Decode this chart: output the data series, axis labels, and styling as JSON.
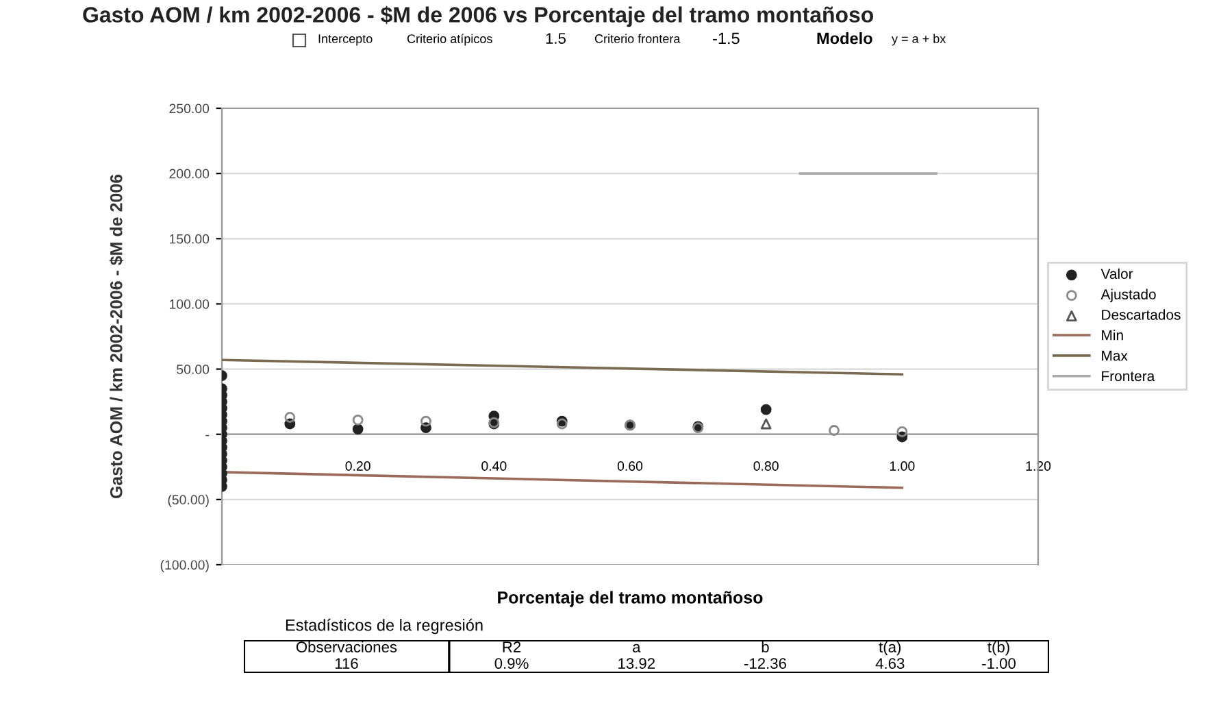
{
  "chart_data": {
    "type": "scatter",
    "title": "Gasto AOM / km 2002-2006 - $M de 2006 vs Porcentaje del tramo montañoso",
    "xlabel": "Porcentaje del tramo montañoso",
    "ylabel": "Gasto AOM / km 2002-2006 - $M de 2006",
    "xlim": [
      0,
      1.2
    ],
    "xticks": [
      {
        "value": 0.2,
        "label": "0.20"
      },
      {
        "value": 0.4,
        "label": "0.40"
      },
      {
        "value": 0.6,
        "label": "0.60"
      },
      {
        "value": 0.8,
        "label": "0.80"
      },
      {
        "value": 1.0,
        "label": "1.00"
      },
      {
        "value": 1.2,
        "label": "1.20"
      }
    ],
    "ylim": [
      -100,
      250
    ],
    "yticks": [
      {
        "value": -100,
        "label": "(100.00)"
      },
      {
        "value": -50,
        "label": "(50.00)"
      },
      {
        "value": 0,
        "label": "-"
      },
      {
        "value": 50,
        "label": "50.00"
      },
      {
        "value": 100,
        "label": "100.00"
      },
      {
        "value": 150,
        "label": "150.00"
      },
      {
        "value": 200,
        "label": "200.00"
      },
      {
        "value": 250,
        "label": "250.00"
      }
    ],
    "grid": "y",
    "legend": "right",
    "series": [
      {
        "name": "Valor",
        "marker": "circle",
        "color": "#222222",
        "x": [
          0,
          0,
          0,
          0,
          0,
          0,
          0,
          0,
          0,
          0,
          0,
          0,
          0,
          0,
          0,
          0,
          0,
          0.1,
          0.2,
          0.3,
          0.4,
          0.4,
          0.5,
          0.6,
          0.7,
          0.8,
          1.0
        ],
        "values": [
          -40,
          -35,
          -30,
          -25,
          -20,
          -15,
          -10,
          -5,
          0,
          5,
          10,
          15,
          20,
          25,
          30,
          35,
          45,
          8,
          4,
          5,
          8,
          14,
          10,
          7,
          6,
          19,
          -2
        ]
      },
      {
        "name": "Ajustado",
        "marker": "circle",
        "color": "#888888",
        "x": [
          0.1,
          0.2,
          0.3,
          0.4,
          0.5,
          0.6,
          0.7,
          0.9,
          1.0
        ],
        "values": [
          13,
          11,
          10,
          9,
          8,
          7,
          5,
          3,
          2
        ]
      },
      {
        "name": "Descartados",
        "marker": "triangle",
        "color": "#555555",
        "x": [
          0.8
        ],
        "values": [
          8
        ]
      },
      {
        "name": "Min",
        "type": "line",
        "line_style": "solid",
        "color": "#9a6a5a",
        "x": [
          0,
          1.0
        ],
        "values": [
          -29,
          -41
        ]
      },
      {
        "name": "Max",
        "type": "line",
        "line_style": "solid",
        "color": "#7a6a50",
        "x": [
          0,
          1.0
        ],
        "values": [
          57,
          46
        ]
      },
      {
        "name": "Frontera",
        "type": "line",
        "line_style": "solid",
        "color": "#aaaaaa",
        "x": [
          0.85,
          1.05
        ],
        "values": [
          200,
          200
        ]
      }
    ],
    "annotations": [
      "Intercepto",
      "Criterio atípicos",
      "1.5",
      "Criterio frontera",
      "-1.5",
      "Modelo",
      "y = a + bx",
      "Estadísticos de la regresión",
      "Observaciones",
      "R2",
      "a",
      "b",
      "t(a)",
      "t(b)",
      "116",
      "0.9%",
      "13.92",
      "-12.36",
      "4.63",
      "-1.00"
    ]
  }
}
